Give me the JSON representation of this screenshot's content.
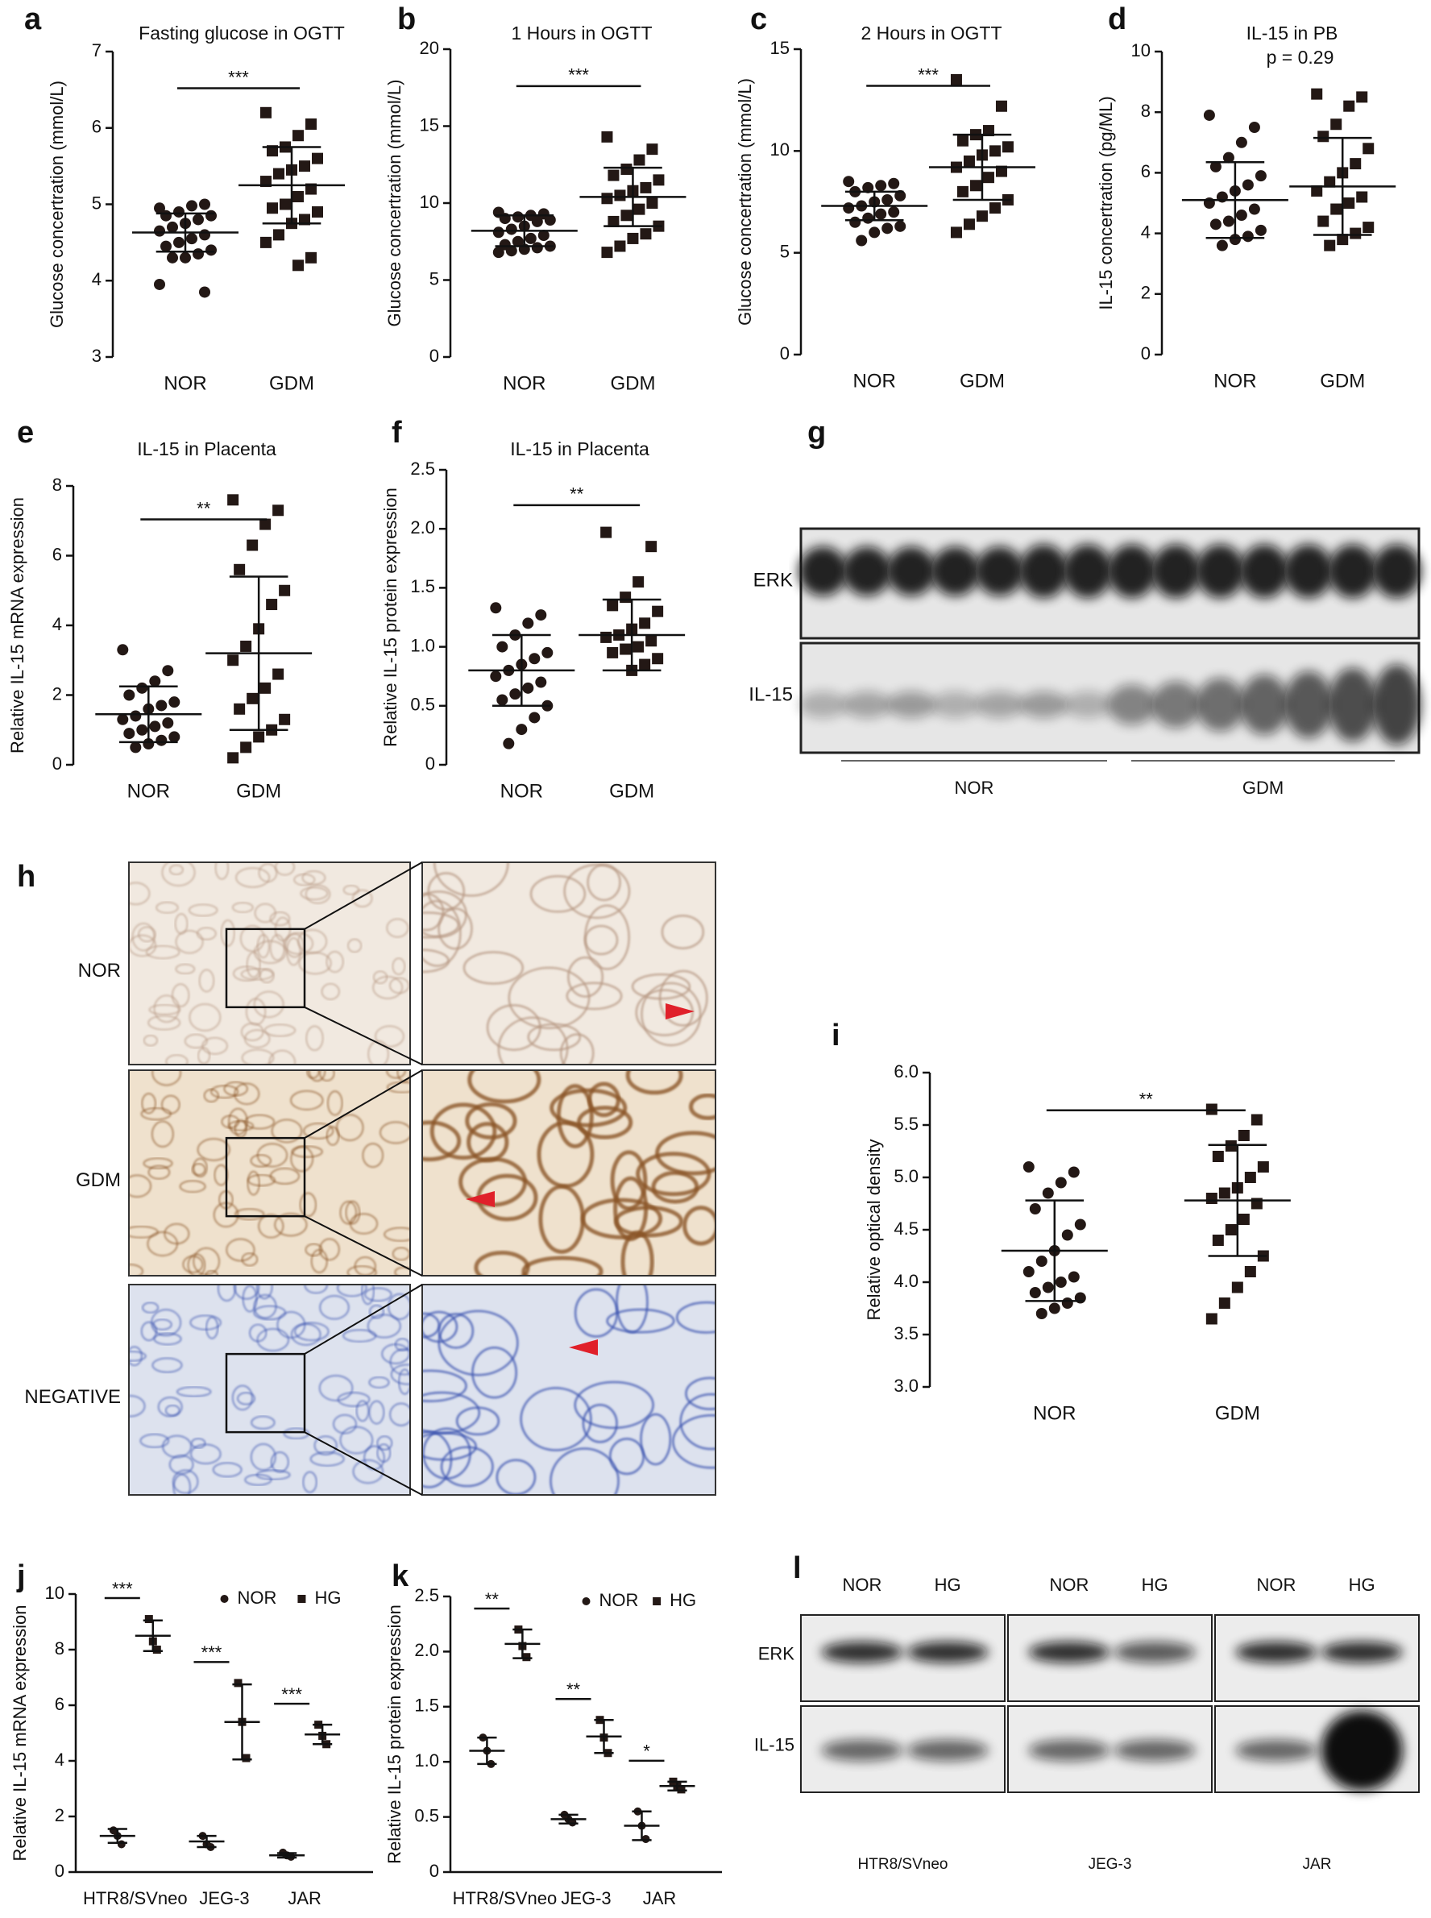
{
  "chart_data": [
    {
      "type": "dot",
      "panel": "a",
      "title": "Fasting glucose in OGTT",
      "ylabel": "Glucose concertration (mmol/L)",
      "color": "#231815",
      "categories": [
        "NOR",
        "GDM"
      ],
      "ylim": [
        3,
        7
      ],
      "yticks": [
        3,
        4,
        5,
        6,
        7
      ],
      "sig": "***",
      "groups": [
        {
          "marker": "circle",
          "mean": 4.63,
          "sd": 0.25,
          "values": [
            4.95,
            5.0,
            4.98,
            4.9,
            4.85,
            4.85,
            4.8,
            4.75,
            4.7,
            4.65,
            4.6,
            4.55,
            4.5,
            4.45,
            4.4,
            4.35,
            4.3,
            4.3,
            3.95,
            3.85
          ]
        },
        {
          "marker": "square",
          "mean": 5.25,
          "sd": 0.5,
          "values": [
            6.2,
            6.05,
            5.9,
            5.75,
            5.7,
            5.6,
            5.5,
            5.45,
            5.4,
            5.3,
            5.2,
            5.1,
            5.0,
            4.95,
            4.9,
            4.8,
            4.75,
            4.6,
            4.5,
            4.3,
            4.2
          ]
        }
      ]
    },
    {
      "type": "dot",
      "panel": "b",
      "title": "1 Hours in OGTT",
      "ylabel": "Glucose concertration (mmol/L)",
      "color": "#231815",
      "categories": [
        "NOR",
        "GDM"
      ],
      "ylim": [
        0,
        20
      ],
      "yticks": [
        0,
        5,
        10,
        15,
        20
      ],
      "sig": "***",
      "groups": [
        {
          "marker": "circle",
          "mean": 8.2,
          "sd": 1.0,
          "values": [
            9.4,
            9.3,
            9.2,
            9.1,
            9.0,
            8.9,
            8.8,
            8.5,
            8.3,
            8.1,
            7.9,
            7.7,
            7.5,
            7.3,
            7.2,
            7.1,
            7.0,
            6.9,
            6.8
          ]
        },
        {
          "marker": "square",
          "mean": 10.4,
          "sd": 1.9,
          "values": [
            14.3,
            13.5,
            12.8,
            12.2,
            11.8,
            11.5,
            11.0,
            10.8,
            10.5,
            10.3,
            10.0,
            9.6,
            9.2,
            8.8,
            8.5,
            8.0,
            7.7,
            7.2,
            6.8
          ]
        }
      ]
    },
    {
      "type": "dot",
      "panel": "c",
      "title": "2 Hours in OGTT",
      "ylabel": "Glucose concertration (mmol/L)",
      "color": "#231815",
      "categories": [
        "NOR",
        "GDM"
      ],
      "ylim": [
        0,
        15
      ],
      "yticks": [
        0,
        5,
        10,
        15
      ],
      "sig": "***",
      "groups": [
        {
          "marker": "circle",
          "mean": 7.3,
          "sd": 0.7,
          "values": [
            8.5,
            8.4,
            8.3,
            8.2,
            8.0,
            7.8,
            7.6,
            7.5,
            7.3,
            7.2,
            7.0,
            6.9,
            6.7,
            6.5,
            6.3,
            6.2,
            6.0,
            5.6
          ]
        },
        {
          "marker": "square",
          "mean": 9.2,
          "sd": 1.6,
          "values": [
            13.5,
            12.2,
            11.0,
            10.8,
            10.5,
            10.2,
            10.0,
            9.8,
            9.5,
            9.2,
            9.0,
            8.7,
            8.3,
            8.0,
            7.6,
            7.2,
            6.8,
            6.4,
            6.0
          ]
        }
      ]
    },
    {
      "type": "dot",
      "panel": "d",
      "title": "IL-15 in PB",
      "annotation": "p = 0.29",
      "ylabel": "IL-15 concertration (pg/ML)",
      "color": "#231815",
      "categories": [
        "NOR",
        "GDM"
      ],
      "ylim": [
        0,
        10
      ],
      "yticks": [
        0,
        2,
        4,
        6,
        8,
        10
      ],
      "groups": [
        {
          "marker": "circle",
          "mean": 5.1,
          "sd": 1.25,
          "values": [
            7.9,
            7.5,
            7.0,
            6.5,
            6.2,
            5.9,
            5.6,
            5.4,
            5.2,
            5.0,
            4.8,
            4.6,
            4.4,
            4.3,
            4.1,
            3.9,
            3.8,
            3.6
          ]
        },
        {
          "marker": "square",
          "mean": 5.55,
          "sd": 1.6,
          "values": [
            8.6,
            8.5,
            8.2,
            7.6,
            7.2,
            6.8,
            6.3,
            6.0,
            5.7,
            5.4,
            5.2,
            5.0,
            4.8,
            4.4,
            4.2,
            4.0,
            3.8,
            3.6
          ]
        }
      ]
    },
    {
      "type": "dot",
      "panel": "e",
      "title": "IL-15 in Placenta",
      "ylabel": "Relative IL-15 mRNA expression",
      "color": "#231815",
      "categories": [
        "NOR",
        "GDM"
      ],
      "ylim": [
        0,
        8
      ],
      "yticks": [
        0,
        2,
        4,
        6,
        8
      ],
      "sig": "**",
      "groups": [
        {
          "marker": "circle",
          "mean": 1.45,
          "sd": 0.8,
          "values": [
            3.3,
            2.7,
            2.4,
            2.2,
            2.0,
            1.8,
            1.7,
            1.6,
            1.4,
            1.3,
            1.2,
            1.1,
            1.0,
            0.9,
            0.8,
            0.7,
            0.6,
            0.5
          ]
        },
        {
          "marker": "square",
          "mean": 3.2,
          "sd": 2.2,
          "values": [
            7.6,
            7.3,
            6.9,
            6.3,
            5.6,
            5.0,
            4.6,
            3.9,
            3.4,
            3.0,
            2.6,
            2.2,
            1.9,
            1.6,
            1.3,
            1.0,
            0.8,
            0.5,
            0.2
          ]
        }
      ]
    },
    {
      "type": "dot",
      "panel": "f",
      "title": "IL-15 in Placenta",
      "ylabel": "Relative IL-15 protein expression",
      "color": "#231815",
      "categories": [
        "NOR",
        "GDM"
      ],
      "ylim": [
        0,
        2.5
      ],
      "yticks": [
        0,
        0.5,
        {
          "value": 1,
          "label": "1.0"
        },
        1.5,
        {
          "value": 2,
          "label": "2.0"
        },
        2.5
      ],
      "sig": "**",
      "groups": [
        {
          "marker": "circle",
          "mean": 0.8,
          "sd": 0.3,
          "values": [
            1.33,
            1.27,
            1.2,
            1.1,
            1.0,
            0.95,
            0.9,
            0.85,
            0.8,
            0.75,
            0.7,
            0.65,
            0.6,
            0.55,
            0.5,
            0.4,
            0.3,
            0.18
          ]
        },
        {
          "marker": "square",
          "mean": 1.1,
          "sd": 0.3,
          "values": [
            1.97,
            1.85,
            1.55,
            1.42,
            1.35,
            1.3,
            1.2,
            1.15,
            1.1,
            1.08,
            1.05,
            1.0,
            0.98,
            0.95,
            0.9,
            0.85,
            0.8
          ]
        }
      ]
    },
    {
      "type": "blot",
      "panel": "g",
      "rows": [
        "ERK",
        "IL-15"
      ],
      "groups": [
        "NOR",
        "GDM"
      ]
    },
    {
      "type": "micrograph",
      "panel": "h",
      "rows": [
        "NOR",
        "GDM",
        "NEGATIVE"
      ]
    },
    {
      "type": "dot",
      "panel": "i",
      "ylabel": "Relative optical density",
      "color": "#231815",
      "categories": [
        "NOR",
        "GDM"
      ],
      "ylim": [
        3,
        6
      ],
      "yticks": [
        {
          "value": 3,
          "label": "3.0"
        },
        3.5,
        {
          "value": 4,
          "label": "4.0"
        },
        4.5,
        {
          "value": 5,
          "label": "5.0"
        },
        5.5,
        {
          "value": 6,
          "label": "6.0"
        }
      ],
      "sig": "**",
      "groups": [
        {
          "marker": "circle",
          "mean": 4.3,
          "sd": 0.48,
          "values": [
            5.1,
            5.05,
            4.95,
            4.85,
            4.7,
            4.55,
            4.45,
            4.3,
            4.2,
            4.1,
            4.05,
            4.0,
            3.95,
            3.9,
            3.85,
            3.8,
            3.75,
            3.7
          ]
        },
        {
          "marker": "square",
          "mean": 4.78,
          "sd": 0.53,
          "values": [
            5.65,
            5.55,
            5.4,
            5.3,
            5.2,
            5.1,
            5.0,
            4.9,
            4.85,
            4.8,
            4.75,
            4.6,
            4.5,
            4.4,
            4.25,
            4.1,
            3.95,
            3.8,
            3.65
          ]
        }
      ]
    },
    {
      "type": "dot",
      "panel": "j",
      "ylabel": "Relative IL-15 mRNA expression",
      "color": "#231815",
      "categories": [
        "HTR8/SVneo",
        "JEG-3",
        "JAR"
      ],
      "ylim": [
        0,
        10
      ],
      "yticks": [
        0,
        2,
        4,
        6,
        8,
        10
      ],
      "sig": [
        "***",
        "***",
        "***"
      ],
      "series": [
        {
          "name": "NOR",
          "marker": "circle",
          "groups": [
            {
              "mean": 1.3,
              "sd": 0.25,
              "values": [
                1.5,
                1.3,
                1.0
              ]
            },
            {
              "mean": 1.1,
              "sd": 0.2,
              "values": [
                1.3,
                1.0,
                0.9
              ]
            },
            {
              "mean": 0.6,
              "sd": 0.08,
              "values": [
                0.7,
                0.6,
                0.55
              ]
            }
          ]
        },
        {
          "name": "HG",
          "marker": "square",
          "groups": [
            {
              "mean": 8.5,
              "sd": 0.55,
              "values": [
                9.1,
                8.3,
                8.0
              ]
            },
            {
              "mean": 5.4,
              "sd": 1.35,
              "values": [
                6.8,
                5.4,
                4.1
              ]
            },
            {
              "mean": 4.95,
              "sd": 0.35,
              "values": [
                5.3,
                4.9,
                4.6
              ]
            }
          ]
        }
      ]
    },
    {
      "type": "dot",
      "panel": "k",
      "ylabel": "Relative IL-15 protein expression",
      "color": "#231815",
      "categories": [
        "HTR8/SVneo",
        "JEG-3",
        "JAR"
      ],
      "ylim": [
        0,
        2.5
      ],
      "yticks": [
        0,
        0.5,
        {
          "value": 1,
          "label": "1.0"
        },
        1.5,
        {
          "value": 2,
          "label": "2.0"
        },
        2.5
      ],
      "sig": [
        "**",
        "**",
        "*"
      ],
      "series": [
        {
          "name": "NOR",
          "marker": "circle",
          "groups": [
            {
              "mean": 1.1,
              "sd": 0.12,
              "values": [
                1.22,
                1.1,
                0.98
              ]
            },
            {
              "mean": 0.48,
              "sd": 0.04,
              "values": [
                0.52,
                0.48,
                0.45
              ]
            },
            {
              "mean": 0.42,
              "sd": 0.13,
              "values": [
                0.55,
                0.42,
                0.3
              ]
            }
          ]
        },
        {
          "name": "HG",
          "marker": "square",
          "groups": [
            {
              "mean": 2.07,
              "sd": 0.13,
              "values": [
                2.2,
                2.05,
                1.95
              ]
            },
            {
              "mean": 1.23,
              "sd": 0.15,
              "values": [
                1.38,
                1.22,
                1.08
              ]
            },
            {
              "mean": 0.78,
              "sd": 0.04,
              "values": [
                0.82,
                0.78,
                0.75
              ]
            }
          ]
        }
      ]
    },
    {
      "type": "blot",
      "panel": "l",
      "rows": [
        "ERK",
        "IL-15"
      ],
      "lanes": [
        "NOR",
        "HG"
      ],
      "groups": [
        "HTR8/SVneo",
        "JEG-3",
        "JAR"
      ]
    }
  ]
}
